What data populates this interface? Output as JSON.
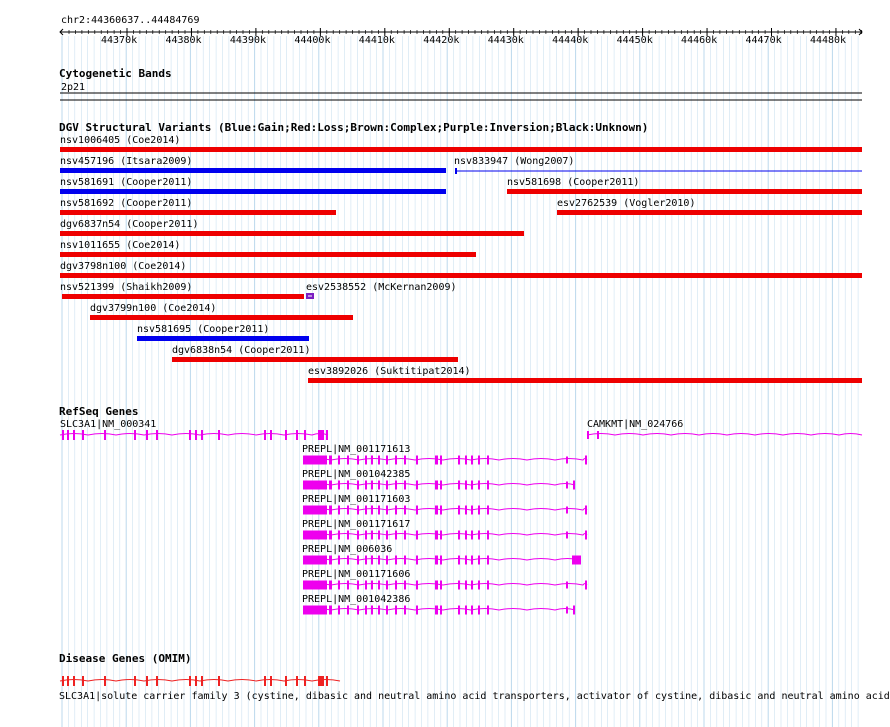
{
  "ruler": {
    "region": "chr2:44360637..44484769",
    "ticks": [
      "44370k",
      "44380k",
      "44390k",
      "44400k",
      "44410k",
      "44420k",
      "44430k",
      "44440k",
      "44450k",
      "44460k",
      "44470k",
      "44480k"
    ]
  },
  "cyto": {
    "title": "Cytogenetic Bands",
    "band": "2p21"
  },
  "dgv": {
    "title": "DGV Structural Variants (Blue:Gain;Red:Loss;Brown:Complex;Purple:Inversion;Black:Unknown)",
    "variants": [
      {
        "label": "nsv1006405 (Coe2014)",
        "type": "loss"
      },
      {
        "label": "nsv457196 (Itsara2009)",
        "type": "gain"
      },
      {
        "label": "nsv833947 (Wong2007)",
        "type": "gain"
      },
      {
        "label": "nsv581691 (Cooper2011)",
        "type": "gain"
      },
      {
        "label": "nsv581698 (Cooper2011)",
        "type": "loss"
      },
      {
        "label": "nsv581692 (Cooper2011)",
        "type": "loss"
      },
      {
        "label": "esv2762539 (Vogler2010)",
        "type": "loss"
      },
      {
        "label": "dgv6837n54 (Cooper2011)",
        "type": "loss"
      },
      {
        "label": "nsv1011655 (Coe2014)",
        "type": "loss"
      },
      {
        "label": "dgv3798n100 (Coe2014)",
        "type": "loss"
      },
      {
        "label": "nsv521399 (Shaikh2009)",
        "type": "loss"
      },
      {
        "label": "esv2538552 (McKernan2009)",
        "type": "inversion"
      },
      {
        "label": "dgv3799n100 (Coe2014)",
        "type": "loss"
      },
      {
        "label": "nsv581695 (Cooper2011)",
        "type": "gain"
      },
      {
        "label": "dgv6838n54 (Cooper2011)",
        "type": "loss"
      },
      {
        "label": "esv3892026 (Suktitipat2014)",
        "type": "loss"
      }
    ]
  },
  "refseq": {
    "title": "RefSeq Genes",
    "genes": [
      {
        "label": "SLC3A1|NM_000341"
      },
      {
        "label": "CAMKMT|NM_024766"
      },
      {
        "label": "PREPL|NM_001171613"
      },
      {
        "label": "PREPL|NM_001042385"
      },
      {
        "label": "PREPL|NM_001171603"
      },
      {
        "label": "PREPL|NM_001171617"
      },
      {
        "label": "PREPL|NM_006036"
      },
      {
        "label": "PREPL|NM_001171606"
      },
      {
        "label": "PREPL|NM_001042386"
      }
    ]
  },
  "omim": {
    "title": "Disease Genes (OMIM)",
    "description": "SLC3A1|solute carrier family 3 (cystine, dibasic and neutral amino acid transporters, activator of cystine, dibasic and neutral amino acid"
  },
  "colors": {
    "gain": "#0000ee",
    "loss": "#ee0000",
    "inversion": "#7a1fc2",
    "gene": "#ee00ee",
    "omim": "#ee2222",
    "grid": "#bcd8ec"
  }
}
